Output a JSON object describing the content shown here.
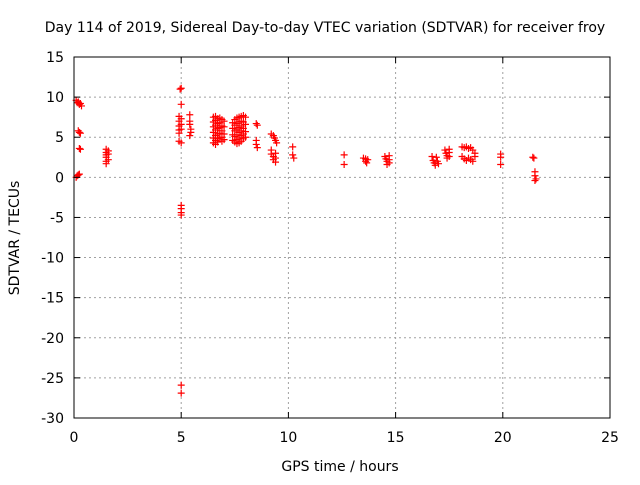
{
  "chart_data": {
    "type": "scatter",
    "title": "Day 114 of 2019, Sidereal Day-to-day VTEC variation (SDTVAR) for receiver froy",
    "xlabel": "GPS time / hours",
    "ylabel": "SDTVAR / TECUs",
    "xlim": [
      0,
      25
    ],
    "ylim": [
      -30,
      15
    ],
    "xticks": [
      0,
      5,
      10,
      15,
      20,
      25
    ],
    "yticks": [
      15,
      10,
      5,
      0,
      -5,
      -10,
      -15,
      -20,
      -25,
      -30
    ],
    "grid": true,
    "marker": "plus",
    "color": "#ff0000",
    "series": [
      {
        "name": "SDTVAR",
        "points": [
          [
            0.1,
            9.6
          ],
          [
            0.15,
            9.3
          ],
          [
            0.2,
            9.4
          ],
          [
            0.25,
            9.1
          ],
          [
            0.3,
            9.2
          ],
          [
            0.35,
            8.9
          ],
          [
            0.2,
            5.8
          ],
          [
            0.25,
            5.6
          ],
          [
            0.3,
            5.5
          ],
          [
            0.25,
            3.6
          ],
          [
            0.3,
            3.5
          ],
          [
            0.1,
            0.0
          ],
          [
            0.15,
            0.2
          ],
          [
            0.2,
            0.3
          ],
          [
            0.25,
            0.4
          ],
          [
            1.5,
            3.5
          ],
          [
            1.5,
            3.1
          ],
          [
            1.5,
            2.8
          ],
          [
            1.5,
            2.5
          ],
          [
            1.5,
            2.0
          ],
          [
            1.5,
            1.7
          ],
          [
            1.6,
            3.3
          ],
          [
            1.6,
            2.9
          ],
          [
            1.6,
            2.2
          ],
          [
            4.95,
            11.0
          ],
          [
            5.0,
            11.1
          ],
          [
            5.0,
            9.1
          ],
          [
            4.9,
            7.6
          ],
          [
            4.9,
            7.0
          ],
          [
            4.9,
            6.4
          ],
          [
            4.9,
            5.9
          ],
          [
            4.9,
            5.5
          ],
          [
            5.0,
            7.3
          ],
          [
            5.0,
            6.6
          ],
          [
            5.0,
            6.0
          ],
          [
            4.9,
            4.5
          ],
          [
            5.0,
            4.3
          ],
          [
            5.0,
            -3.5
          ],
          [
            5.0,
            -3.9
          ],
          [
            5.0,
            -4.4
          ],
          [
            5.0,
            -4.7
          ],
          [
            5.0,
            -25.9
          ],
          [
            5.0,
            -26.9
          ],
          [
            5.4,
            7.8
          ],
          [
            5.4,
            7.0
          ],
          [
            5.4,
            6.6
          ],
          [
            5.45,
            6.0
          ],
          [
            5.45,
            5.6
          ],
          [
            5.4,
            5.2
          ],
          [
            6.5,
            7.5
          ],
          [
            6.5,
            6.9
          ],
          [
            6.5,
            6.3
          ],
          [
            6.5,
            5.6
          ],
          [
            6.5,
            4.9
          ],
          [
            6.5,
            4.3
          ],
          [
            6.6,
            7.6
          ],
          [
            6.6,
            7.1
          ],
          [
            6.6,
            6.5
          ],
          [
            6.6,
            5.9
          ],
          [
            6.6,
            5.2
          ],
          [
            6.6,
            4.6
          ],
          [
            6.6,
            4.1
          ],
          [
            6.7,
            7.3
          ],
          [
            6.7,
            6.7
          ],
          [
            6.7,
            6.1
          ],
          [
            6.7,
            5.4
          ],
          [
            6.7,
            4.8
          ],
          [
            6.7,
            4.4
          ],
          [
            6.8,
            7.4
          ],
          [
            6.8,
            6.8
          ],
          [
            6.8,
            6.2
          ],
          [
            6.8,
            5.5
          ],
          [
            6.8,
            4.9
          ],
          [
            6.9,
            7.2
          ],
          [
            6.9,
            6.4
          ],
          [
            6.9,
            5.8
          ],
          [
            6.9,
            5.0
          ],
          [
            6.9,
            4.5
          ],
          [
            7.0,
            7.0
          ],
          [
            7.0,
            6.3
          ],
          [
            7.0,
            5.4
          ],
          [
            7.0,
            4.7
          ],
          [
            7.4,
            6.8
          ],
          [
            7.4,
            6.1
          ],
          [
            7.4,
            5.3
          ],
          [
            7.4,
            4.6
          ],
          [
            7.5,
            7.2
          ],
          [
            7.5,
            6.5
          ],
          [
            7.5,
            5.8
          ],
          [
            7.5,
            5.1
          ],
          [
            7.5,
            4.4
          ],
          [
            7.6,
            7.4
          ],
          [
            7.6,
            6.7
          ],
          [
            7.6,
            6.0
          ],
          [
            7.6,
            5.3
          ],
          [
            7.6,
            4.7
          ],
          [
            7.6,
            4.2
          ],
          [
            7.7,
            7.5
          ],
          [
            7.7,
            6.9
          ],
          [
            7.7,
            6.2
          ],
          [
            7.7,
            5.6
          ],
          [
            7.7,
            4.9
          ],
          [
            7.7,
            4.3
          ],
          [
            7.8,
            7.6
          ],
          [
            7.8,
            7.0
          ],
          [
            7.8,
            6.4
          ],
          [
            7.8,
            5.8
          ],
          [
            7.8,
            5.2
          ],
          [
            7.8,
            4.5
          ],
          [
            7.9,
            7.7
          ],
          [
            7.9,
            6.9
          ],
          [
            7.9,
            6.1
          ],
          [
            7.9,
            5.4
          ],
          [
            7.9,
            4.8
          ],
          [
            8.0,
            7.5
          ],
          [
            8.0,
            6.6
          ],
          [
            8.0,
            5.7
          ],
          [
            8.0,
            5.0
          ],
          [
            8.5,
            6.7
          ],
          [
            8.55,
            6.5
          ],
          [
            8.5,
            4.6
          ],
          [
            8.5,
            4.1
          ],
          [
            8.55,
            3.7
          ],
          [
            9.2,
            5.4
          ],
          [
            9.3,
            5.2
          ],
          [
            9.35,
            4.9
          ],
          [
            9.4,
            4.6
          ],
          [
            9.45,
            4.3
          ],
          [
            9.2,
            3.4
          ],
          [
            9.2,
            2.9
          ],
          [
            9.3,
            2.6
          ],
          [
            9.3,
            2.2
          ],
          [
            9.4,
            3.0
          ],
          [
            9.4,
            2.4
          ],
          [
            9.4,
            1.9
          ],
          [
            10.2,
            3.8
          ],
          [
            10.2,
            2.8
          ],
          [
            10.25,
            2.4
          ],
          [
            12.6,
            2.8
          ],
          [
            12.6,
            1.6
          ],
          [
            13.5,
            2.4
          ],
          [
            13.6,
            2.3
          ],
          [
            13.6,
            2.0
          ],
          [
            13.65,
            1.8
          ],
          [
            13.7,
            2.2
          ],
          [
            14.5,
            2.6
          ],
          [
            14.55,
            2.3
          ],
          [
            14.6,
            2.0
          ],
          [
            14.6,
            1.6
          ],
          [
            14.7,
            2.7
          ],
          [
            14.7,
            2.2
          ],
          [
            14.7,
            1.8
          ],
          [
            16.7,
            2.6
          ],
          [
            16.75,
            2.1
          ],
          [
            16.8,
            1.8
          ],
          [
            16.85,
            1.5
          ],
          [
            16.9,
            2.5
          ],
          [
            16.95,
            2.0
          ],
          [
            17.0,
            1.7
          ],
          [
            17.3,
            3.4
          ],
          [
            17.35,
            3.0
          ],
          [
            17.4,
            2.7
          ],
          [
            17.4,
            2.4
          ],
          [
            17.5,
            3.5
          ],
          [
            17.5,
            3.1
          ],
          [
            17.5,
            2.6
          ],
          [
            18.1,
            3.8
          ],
          [
            18.2,
            3.7
          ],
          [
            18.3,
            3.8
          ],
          [
            18.4,
            3.6
          ],
          [
            18.5,
            3.7
          ],
          [
            18.6,
            3.4
          ],
          [
            18.1,
            2.6
          ],
          [
            18.2,
            2.3
          ],
          [
            18.3,
            2.1
          ],
          [
            18.4,
            2.4
          ],
          [
            18.5,
            2.2
          ],
          [
            18.6,
            2.0
          ],
          [
            18.7,
            2.6
          ],
          [
            18.7,
            3.0
          ],
          [
            19.9,
            2.9
          ],
          [
            19.9,
            2.5
          ],
          [
            19.9,
            1.6
          ],
          [
            21.4,
            2.5
          ],
          [
            21.45,
            2.4
          ],
          [
            21.5,
            0.7
          ],
          [
            21.5,
            0.2
          ],
          [
            21.55,
            -0.2
          ],
          [
            21.5,
            -0.4
          ]
        ]
      }
    ]
  }
}
